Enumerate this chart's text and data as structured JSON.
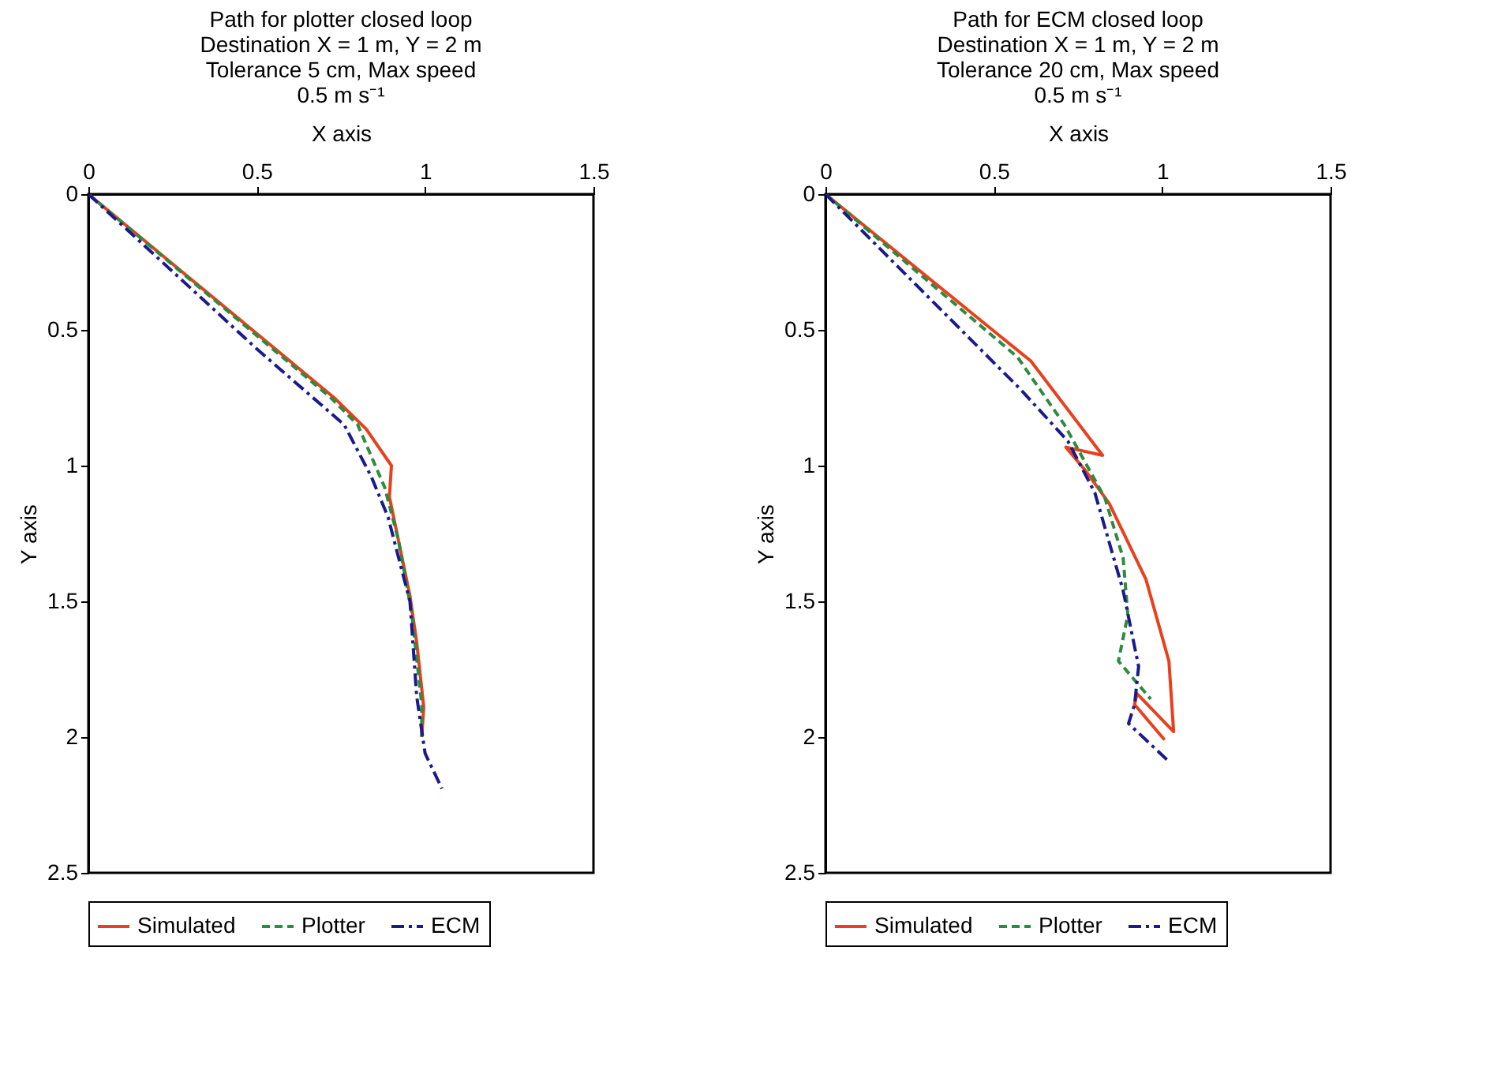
{
  "chart_data": [
    {
      "type": "line",
      "title": "Path for plotter closed loop\nDestination X = 1 m, Y = 2 m\nTolerance 5 cm, Max speed\n0.5 m s⁻¹",
      "xlabel": "X axis",
      "ylabel": "Y axis",
      "xlim": [
        0,
        1.5
      ],
      "xticks": [
        0,
        0.5,
        1,
        1.5
      ],
      "ylim": [
        2.5,
        0
      ],
      "yticks": [
        0,
        0.5,
        1,
        1.5,
        2,
        2.5
      ],
      "grid": false,
      "legend": "bottom",
      "marker": "none",
      "series": [
        {
          "name": "Simulated",
          "color": "#e8401c",
          "line_style": "solid",
          "x": [
            0,
            0.73,
            0.825,
            0.9,
            0.894,
            0.92,
            0.955,
            0.975,
            0.996,
            0.99
          ],
          "values": [
            0,
            0.75,
            0.865,
            1.0,
            1.115,
            1.27,
            1.48,
            1.65,
            1.89,
            2.0
          ]
        },
        {
          "name": "Plotter",
          "color": "#2e8b3e",
          "line_style": "dashed",
          "x": [
            0,
            0.72,
            0.8,
            0.88,
            0.92,
            0.96,
            0.99,
            0.99
          ],
          "values": [
            0,
            0.75,
            0.85,
            1.08,
            1.27,
            1.54,
            1.88,
            2.0
          ]
        },
        {
          "name": "ECM",
          "color": "#1a1a8c",
          "line_style": "dashdot",
          "x": [
            0,
            0.5,
            0.76,
            0.84,
            0.89,
            0.955,
            0.975,
            1.0,
            1.05
          ],
          "values": [
            0,
            0.57,
            0.85,
            1.04,
            1.19,
            1.5,
            1.85,
            2.06,
            2.19
          ]
        }
      ]
    },
    {
      "type": "line",
      "title": "Path for ECM closed loop\nDestination X = 1 m, Y = 2 m\nTolerance 20 cm, Max speed\n0.5 m s⁻¹",
      "xlabel": "X axis",
      "ylabel": "Y axis",
      "xlim": [
        0,
        1.5
      ],
      "xticks": [
        0,
        0.5,
        1,
        1.5
      ],
      "ylim": [
        2.5,
        0
      ],
      "yticks": [
        0,
        0.5,
        1,
        1.5,
        2,
        2.5
      ],
      "grid": false,
      "legend": "bottom",
      "marker": "none",
      "series": [
        {
          "name": "Simulated",
          "color": "#e8401c",
          "line_style": "solid",
          "x": [
            0,
            0.61,
            0.823,
            0.714,
            0.77,
            0.843,
            0.952,
            1.02,
            1.034,
            0.925,
            0.918,
            1.007
          ],
          "values": [
            0,
            0.615,
            0.962,
            0.932,
            1.015,
            1.14,
            1.42,
            1.72,
            1.98,
            1.84,
            1.88,
            2.01
          ]
        },
        {
          "name": "Plotter",
          "color": "#2e8b3e",
          "line_style": "dashed",
          "x": [
            0,
            0.57,
            0.71,
            0.83,
            0.884,
            0.898,
            0.87,
            0.966
          ],
          "values": [
            0,
            0.6,
            0.85,
            1.12,
            1.34,
            1.55,
            1.72,
            1.86
          ]
        },
        {
          "name": "ECM",
          "color": "#1a1a8c",
          "line_style": "dashdot",
          "x": [
            0,
            0.58,
            0.72,
            0.8,
            0.884,
            0.93,
            0.918,
            0.9,
            1.02
          ],
          "values": [
            0,
            0.72,
            0.91,
            1.1,
            1.46,
            1.74,
            1.88,
            1.95,
            2.09
          ]
        }
      ]
    }
  ]
}
